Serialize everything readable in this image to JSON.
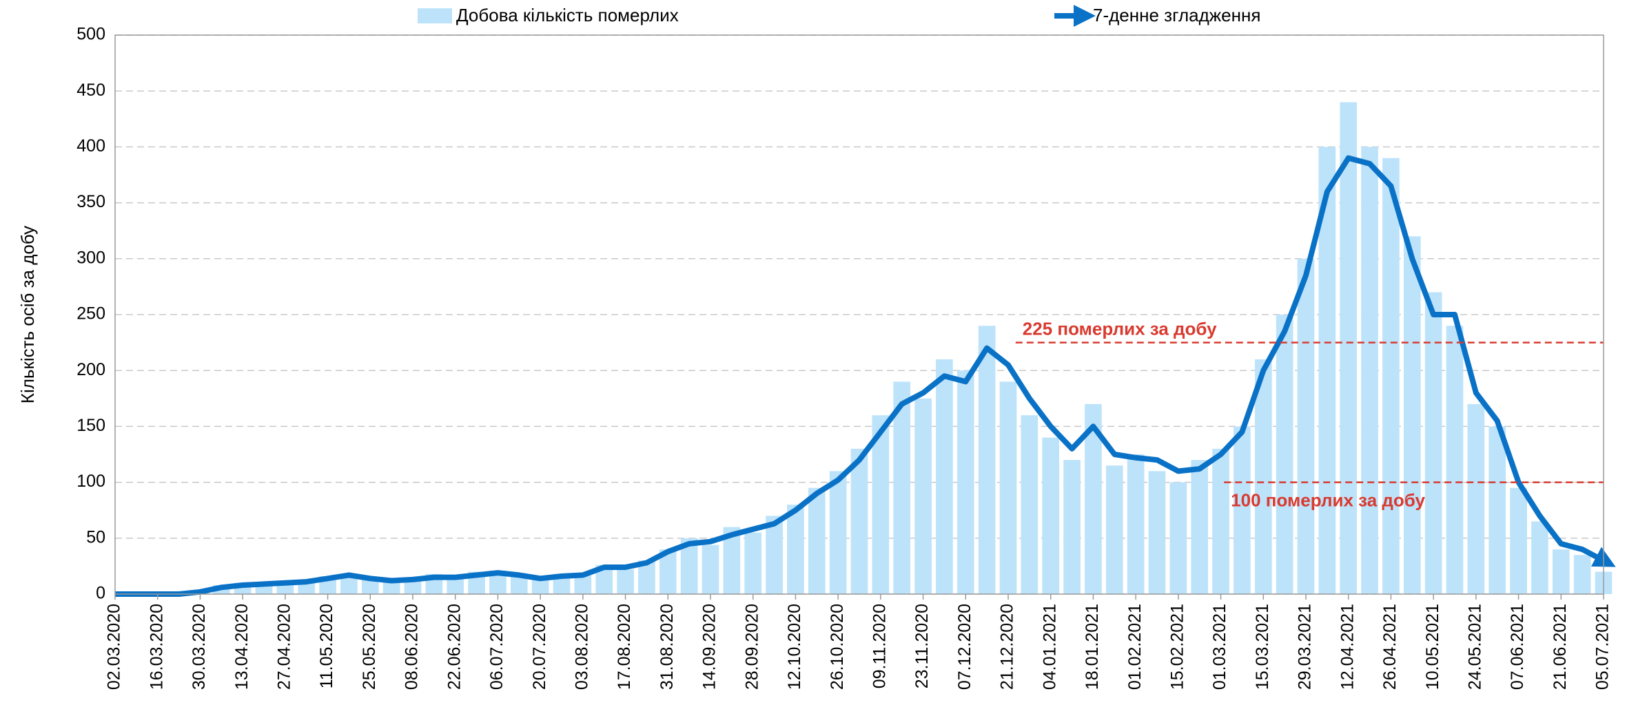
{
  "chart_data": {
    "type": "combo",
    "y_label": "Кількість осіб за добу",
    "categories": [
      "02.03.2020",
      null,
      "16.03.2020",
      null,
      "30.03.2020",
      null,
      "13.04.2020",
      null,
      "27.04.2020",
      null,
      "11.05.2020",
      null,
      "25.05.2020",
      null,
      "08.06.2020",
      null,
      "22.06.2020",
      null,
      "06.07.2020",
      null,
      "20.07.2020",
      null,
      "03.08.2020",
      null,
      "17.08.2020",
      null,
      "31.08.2020",
      null,
      "14.09.2020",
      null,
      "28.09.2020",
      null,
      "12.10.2020",
      null,
      "26.10.2020",
      null,
      "09.11.2020",
      null,
      "23.11.2020",
      null,
      "07.12.2020",
      null,
      "21.12.2020",
      null,
      "04.01.2021",
      null,
      "18.01.2021",
      null,
      "01.02.2021",
      null,
      "15.02.2021",
      null,
      "01.03.2021",
      null,
      "15.03.2021",
      null,
      "29.03.2021",
      null,
      "12.04.2021",
      null,
      "26.04.2021",
      null,
      "10.05.2021",
      null,
      "24.05.2021",
      null,
      "07.06.2021",
      null,
      "21.06.2021",
      null,
      "05.07.2021"
    ],
    "series": [
      {
        "name": "Добова кількість померлих",
        "type": "bar",
        "color": "#bde3fb",
        "values": [
          0,
          0,
          0,
          1,
          3,
          8,
          10,
          9,
          12,
          13,
          16,
          18,
          13,
          11,
          14,
          18,
          14,
          20,
          21,
          16,
          13,
          18,
          19,
          26,
          22,
          30,
          40,
          50,
          44,
          60,
          55,
          70,
          80,
          95,
          110,
          130,
          160,
          190,
          175,
          210,
          200,
          240,
          190,
          160,
          140,
          120,
          170,
          115,
          125,
          110,
          100,
          120,
          130,
          150,
          210,
          250,
          300,
          400,
          440,
          400,
          390,
          320,
          270,
          240,
          170,
          150,
          95,
          65,
          40,
          35,
          20
        ]
      },
      {
        "name": "7-денне згладження",
        "type": "line",
        "color": "#0a72c6",
        "values": [
          0,
          0,
          0,
          0,
          2,
          6,
          8,
          9,
          10,
          11,
          14,
          17,
          14,
          12,
          13,
          15,
          15,
          17,
          19,
          17,
          14,
          16,
          17,
          24,
          24,
          28,
          38,
          45,
          47,
          53,
          58,
          63,
          75,
          90,
          102,
          120,
          145,
          170,
          180,
          195,
          190,
          220,
          205,
          175,
          150,
          130,
          150,
          125,
          122,
          120,
          110,
          112,
          125,
          145,
          200,
          235,
          285,
          360,
          390,
          385,
          365,
          300,
          250,
          250,
          180,
          155,
          100,
          70,
          45,
          40,
          30
        ]
      }
    ],
    "annotations": [
      {
        "text": "225 померлих за добу",
        "value": 225,
        "color": "#d83a2f"
      },
      {
        "text": "100 померлих за добу",
        "value": 100,
        "color": "#d83a2f"
      }
    ],
    "ylim": [
      0,
      500
    ],
    "yticks": [
      0,
      50,
      100,
      150,
      200,
      250,
      300,
      350,
      400,
      450,
      500
    ],
    "grid": true
  }
}
